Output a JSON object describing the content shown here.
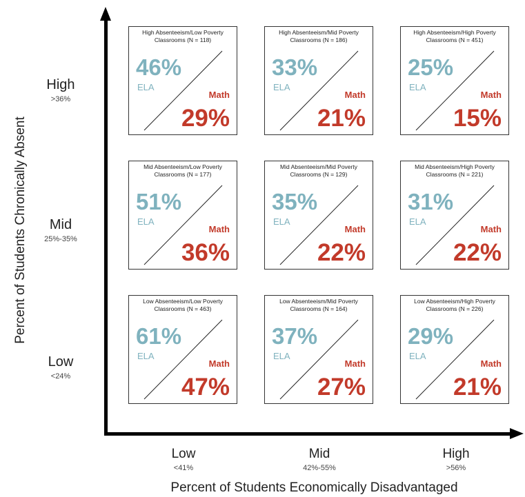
{
  "axes": {
    "y_title": "Percent of Students Chronically Absent",
    "x_title": "Percent of Students Economically Disadvantaged"
  },
  "rows": [
    {
      "label": "High",
      "sub": ">36%"
    },
    {
      "label": "Mid",
      "sub": "25%-35%"
    },
    {
      "label": "Low",
      "sub": "<24%"
    }
  ],
  "columns": [
    {
      "label": "Low",
      "sub": "<41%"
    },
    {
      "label": "Mid",
      "sub": "42%-55%"
    },
    {
      "label": "High",
      "sub": ">56%"
    }
  ],
  "labels": {
    "ela": "ELA",
    "math": "Math"
  },
  "cells": [
    [
      {
        "title_line1": "High Absenteeism/Low Poverty",
        "title_line2": "Classrooms (N = 118)",
        "ela": "46%",
        "math": "29%"
      },
      {
        "title_line1": "High Absenteeism/Mid Poverty",
        "title_line2": "Classrooms (N = 186)",
        "ela": "33%",
        "math": "21%"
      },
      {
        "title_line1": "High Absenteeism/High Poverty",
        "title_line2": "Classrooms (N = 451)",
        "ela": "25%",
        "math": "15%"
      }
    ],
    [
      {
        "title_line1": "Mid Absenteeism/Low Poverty",
        "title_line2": "Classrooms (N = 177)",
        "ela": "51%",
        "math": "36%"
      },
      {
        "title_line1": "Mid Absenteeism/Mid Poverty",
        "title_line2": "Classrooms (N = 129)",
        "ela": "35%",
        "math": "22%"
      },
      {
        "title_line1": "Mid Absenteeism/High Poverty",
        "title_line2": "Classrooms (N = 221)",
        "ela": "31%",
        "math": "22%"
      }
    ],
    [
      {
        "title_line1": "Low Absenteeism/Low Poverty",
        "title_line2": "Classrooms (N = 463)",
        "ela": "61%",
        "math": "47%"
      },
      {
        "title_line1": "Low Absenteeism/Mid Poverty",
        "title_line2": "Classrooms (N = 164)",
        "ela": "37%",
        "math": "27%"
      },
      {
        "title_line1": "Low Absenteeism/High Poverty",
        "title_line2": "Classrooms (N = 226)",
        "ela": "29%",
        "math": "21%"
      }
    ]
  ],
  "colors": {
    "ela": "#7fb2be",
    "math": "#c23a2a"
  }
}
